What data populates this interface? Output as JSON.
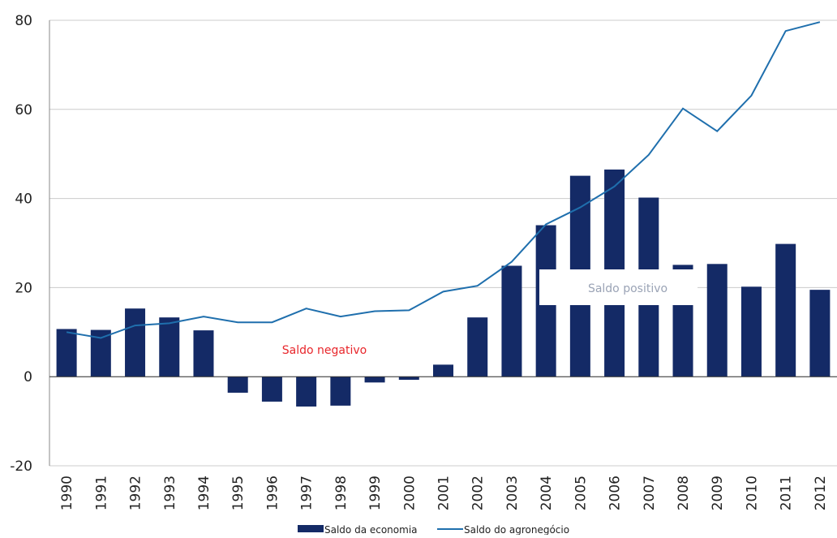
{
  "chart_data": {
    "type": "bar_line",
    "categories": [
      "1990",
      "1991",
      "1992",
      "1993",
      "1994",
      "1995",
      "1996",
      "1997",
      "1998",
      "1999",
      "2000",
      "2001",
      "2002",
      "2003",
      "2004",
      "2005",
      "2006",
      "2007",
      "2008",
      "2009",
      "2010",
      "2011",
      "2012"
    ],
    "series": [
      {
        "name": "Saldo da economia",
        "type": "bar",
        "color": "#142a66",
        "values": [
          10.7,
          10.5,
          15.3,
          13.3,
          10.4,
          -3.6,
          -5.6,
          -6.7,
          -6.5,
          -1.3,
          -0.7,
          2.7,
          13.3,
          24.9,
          34.0,
          45.1,
          46.5,
          40.2,
          25.1,
          25.3,
          20.2,
          29.8,
          19.5
        ]
      },
      {
        "name": "Saldo do agronegócio",
        "type": "line",
        "color": "#1f6fad",
        "values": [
          10.0,
          8.7,
          11.5,
          12.0,
          13.5,
          12.2,
          12.2,
          15.3,
          13.5,
          14.7,
          14.9,
          19.1,
          20.4,
          25.8,
          34.2,
          38.0,
          42.7,
          49.8,
          60.2,
          55.1,
          63.1,
          77.6,
          79.6
        ]
      }
    ],
    "ylim": [
      -20,
      80
    ],
    "yticks": [
      -20,
      0,
      20,
      40,
      60,
      80
    ],
    "grid": true,
    "annotations": [
      {
        "text": "Saldo negativo",
        "color": "#e8262b"
      },
      {
        "text": "Saldo positivo",
        "color": "#9aa3b5"
      }
    ]
  }
}
